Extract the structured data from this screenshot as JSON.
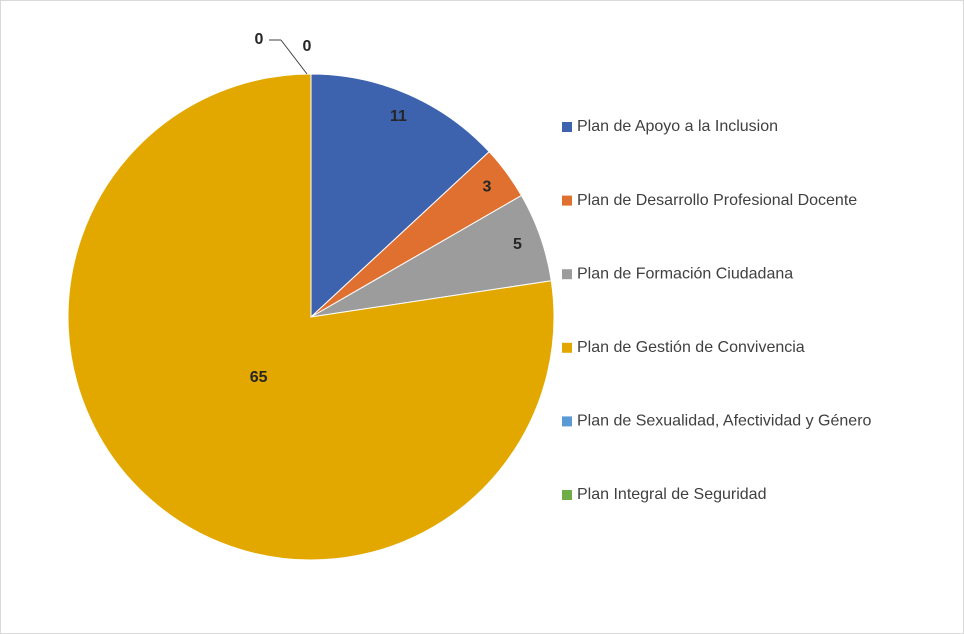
{
  "chart_data": {
    "type": "pie",
    "categories": [
      "Plan de Apoyo a la Inclusion",
      "Plan de Desarrollo Profesional Docente",
      "Plan de Formación Ciudadana",
      "Plan de Gestión de Convivencia",
      "Plan de Sexualidad, Afectividad y Género",
      "Plan Integral de Seguridad"
    ],
    "values": [
      11,
      3,
      5,
      65,
      0,
      0
    ],
    "colors": [
      "#3d63ae",
      "#e07030",
      "#9c9c9c",
      "#e3a800",
      "#5b9bd5",
      "#70ad47"
    ],
    "legend": "right"
  }
}
